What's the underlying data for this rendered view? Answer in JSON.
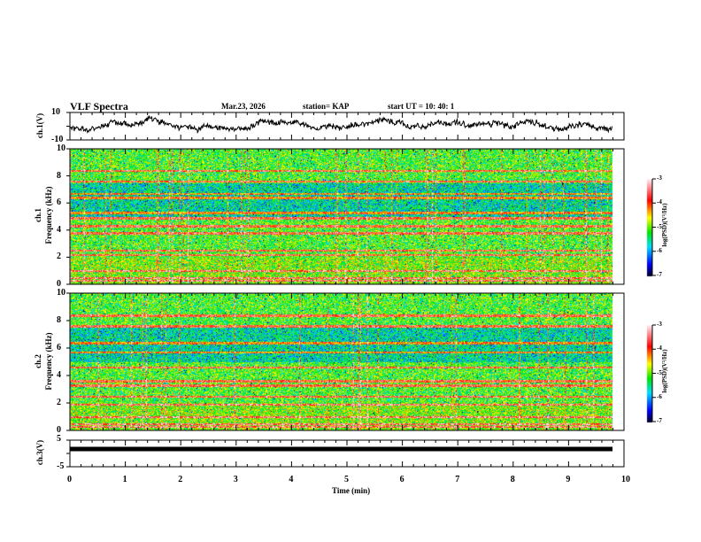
{
  "header": {
    "title": "VLF Spectra",
    "date": "Mar.23, 2026",
    "station": "station= KAP",
    "start": "start  UT =   10: 40: 1"
  },
  "chart_data": {
    "type": "heatmap",
    "xlabel": "Time (min)",
    "xlim": [
      0,
      10
    ],
    "xticks": [
      "0",
      "1",
      "2",
      "3",
      "4",
      "5",
      "6",
      "7",
      "8",
      "9",
      "10"
    ],
    "data_end_min": 9.8,
    "panels": [
      {
        "name": "ch1-waveform",
        "type": "line",
        "ylabel": "ch.1(V)",
        "ylim": [
          -10,
          10
        ],
        "yticks": [
          "10",
          "-10"
        ]
      },
      {
        "name": "ch1-spectrogram",
        "type": "heatmap",
        "ylabel": "ch.1\nFrequency (kHz)",
        "ylabel_top": "ch.1",
        "ylabel_bottom": "Frequency (kHz)",
        "ylim": [
          0,
          10
        ],
        "yticks": [
          "0",
          "2",
          "4",
          "6",
          "8",
          "10"
        ],
        "colorbar": {
          "label": "log(PSD)(V²/Hz)",
          "range": [
            -7,
            -3
          ],
          "ticks": [
            "-3",
            "-4",
            "-5",
            "-6",
            "-7"
          ]
        },
        "bands_khz": [
          0.3,
          0.5,
          1.0,
          2.2,
          2.5,
          3.8,
          4.3,
          4.9,
          5.3,
          6.4,
          6.7,
          7.6,
          8.4
        ]
      },
      {
        "name": "ch2-spectrogram",
        "type": "heatmap",
        "ylabel_top": "ch.2",
        "ylabel_bottom": "Frequency (kHz)",
        "ylim": [
          0,
          10
        ],
        "yticks": [
          "0",
          "2",
          "4",
          "6",
          "8",
          "10"
        ],
        "colorbar": {
          "label": "log(PSD)(V²/Hz)",
          "range": [
            -7,
            -3
          ],
          "ticks": [
            "-3",
            "-4",
            "-5",
            "-6",
            "-7"
          ]
        },
        "bands_khz": [
          0.3,
          0.5,
          1.0,
          1.9,
          2.5,
          3.3,
          3.6,
          4.6,
          5.7,
          6.4,
          7.6,
          8.4
        ]
      },
      {
        "name": "ch3-waveform",
        "type": "line",
        "ylabel": "ch.3(V)",
        "ylim": [
          -5,
          5
        ],
        "yticks": [
          "5",
          "-5"
        ],
        "level_v": 1.5
      }
    ]
  }
}
